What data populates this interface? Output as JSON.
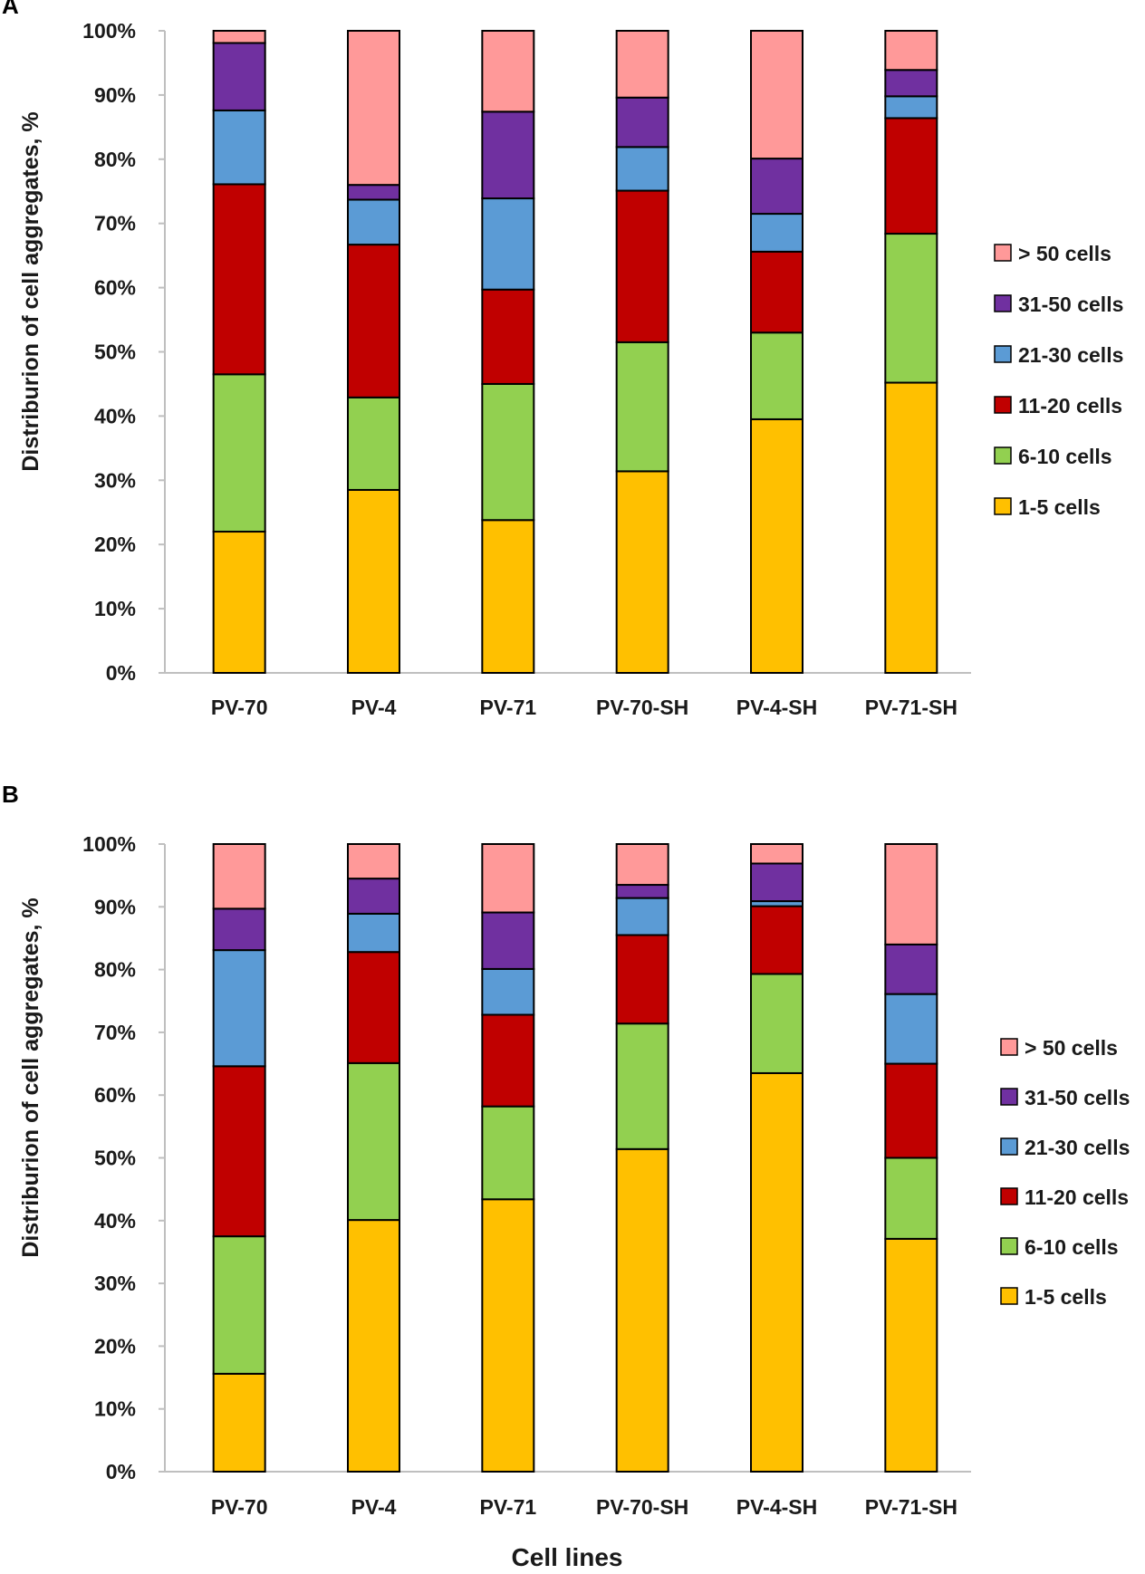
{
  "figure": {
    "x_axis_label": "Cell lines"
  },
  "legend_order": [
    "> 50 cells",
    "31-50 cells",
    "21-30 cells",
    "11-20 cells",
    "6-10 cells",
    "1-5 cells"
  ],
  "chart_data": [
    {
      "panel": "A",
      "type": "bar",
      "stacked": true,
      "ylabel": "Distriburion of cell aggregates, %",
      "ylim": [
        0,
        100
      ],
      "yticks": [
        "0%",
        "10%",
        "20%",
        "30%",
        "40%",
        "50%",
        "60%",
        "70%",
        "80%",
        "90%",
        "100%"
      ],
      "categories": [
        "PV-70",
        "PV-4",
        "PV-71",
        "PV-70-SH",
        "PV-4-SH",
        "PV-71-SH"
      ],
      "series": [
        {
          "name": "1-5 cells",
          "color": "#FFC000",
          "values": [
            22.0,
            28.5,
            23.8,
            31.4,
            39.5,
            45.2
          ]
        },
        {
          "name": "6-10 cells",
          "color": "#92D050",
          "values": [
            24.5,
            14.4,
            21.2,
            20.1,
            13.5,
            23.2
          ]
        },
        {
          "name": "11-20 cells",
          "color": "#C00000",
          "values": [
            29.6,
            23.8,
            14.7,
            23.6,
            12.6,
            18.0
          ]
        },
        {
          "name": "21-30 cells",
          "color": "#5B9BD5",
          "values": [
            11.5,
            7.0,
            14.2,
            6.8,
            5.9,
            3.4
          ]
        },
        {
          "name": "31-50 cells",
          "color": "#7030A0",
          "values": [
            10.5,
            2.3,
            13.5,
            7.7,
            8.6,
            4.1
          ]
        },
        {
          "name": "> 50 cells",
          "color": "#FF9999",
          "values": [
            1.9,
            24.0,
            12.6,
            10.4,
            19.9,
            6.1
          ]
        }
      ],
      "legend": "right"
    },
    {
      "panel": "B",
      "type": "bar",
      "stacked": true,
      "ylabel": "Distriburion of cell aggregates, %",
      "ylim": [
        0,
        100
      ],
      "yticks": [
        "0%",
        "10%",
        "20%",
        "30%",
        "40%",
        "50%",
        "60%",
        "70%",
        "80%",
        "90%",
        "100%"
      ],
      "categories": [
        "PV-70",
        "PV-4",
        "PV-71",
        "PV-70-SH",
        "PV-4-SH",
        "PV-71-SH"
      ],
      "series": [
        {
          "name": "1-5 cells",
          "color": "#FFC000",
          "values": [
            15.6,
            40.1,
            43.4,
            51.4,
            63.5,
            37.1
          ]
        },
        {
          "name": "6-10 cells",
          "color": "#92D050",
          "values": [
            21.9,
            25.0,
            14.8,
            20.0,
            15.8,
            12.9
          ]
        },
        {
          "name": "11-20 cells",
          "color": "#C00000",
          "values": [
            27.1,
            17.7,
            14.6,
            14.1,
            10.8,
            15.0
          ]
        },
        {
          "name": "21-30 cells",
          "color": "#5B9BD5",
          "values": [
            18.5,
            6.1,
            7.3,
            5.9,
            0.8,
            11.1
          ]
        },
        {
          "name": "31-50 cells",
          "color": "#7030A0",
          "values": [
            6.6,
            5.6,
            9.0,
            2.1,
            6.0,
            7.9
          ]
        },
        {
          "name": "> 50 cells",
          "color": "#FF9999",
          "values": [
            10.3,
            5.5,
            10.9,
            6.5,
            3.1,
            16.0
          ]
        }
      ],
      "legend": "right"
    }
  ]
}
